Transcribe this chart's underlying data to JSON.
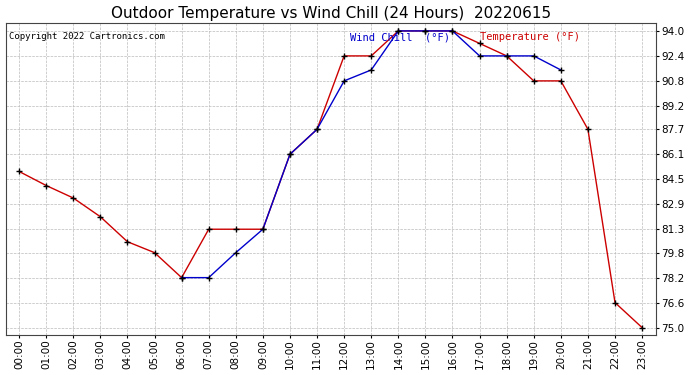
{
  "title": "Outdoor Temperature vs Wind Chill (24 Hours)  20220615",
  "copyright": "Copyright 2022 Cartronics.com",
  "legend_wind_chill": "Wind Chill  (°F)",
  "legend_temperature": "Temperature (°F)",
  "x_labels": [
    "00:00",
    "01:00",
    "02:00",
    "03:00",
    "04:00",
    "05:00",
    "06:00",
    "07:00",
    "08:00",
    "09:00",
    "10:00",
    "11:00",
    "12:00",
    "13:00",
    "14:00",
    "15:00",
    "16:00",
    "17:00",
    "18:00",
    "19:00",
    "20:00",
    "21:00",
    "22:00",
    "23:00"
  ],
  "temperature": [
    85.0,
    84.1,
    83.3,
    82.1,
    80.5,
    79.8,
    78.2,
    81.3,
    81.3,
    81.3,
    86.1,
    87.7,
    92.4,
    92.4,
    94.0,
    94.0,
    94.0,
    93.2,
    92.4,
    90.8,
    90.8,
    87.7,
    76.6,
    75.0
  ],
  "wind_chill_x": [
    6,
    7,
    8,
    9,
    10,
    11,
    12,
    13,
    14,
    15,
    16,
    17,
    18,
    19,
    20
  ],
  "wind_chill_y": [
    78.2,
    78.2,
    79.8,
    81.3,
    86.1,
    87.7,
    90.8,
    91.5,
    94.0,
    94.0,
    94.0,
    92.4,
    92.4,
    92.4,
    91.5
  ],
  "ylim_min": 75.0,
  "ylim_max": 94.0,
  "y_ticks": [
    75.0,
    76.6,
    78.2,
    79.8,
    81.3,
    82.9,
    84.5,
    86.1,
    87.7,
    89.2,
    90.8,
    92.4,
    94.0
  ],
  "temp_color": "#cc0000",
  "wind_chill_color": "#0000cc",
  "grid_color": "#bbbbbb",
  "background_color": "#ffffff",
  "title_fontsize": 11,
  "tick_fontsize": 7.5,
  "copyright_fontsize": 6.5,
  "legend_fontsize": 7.5
}
